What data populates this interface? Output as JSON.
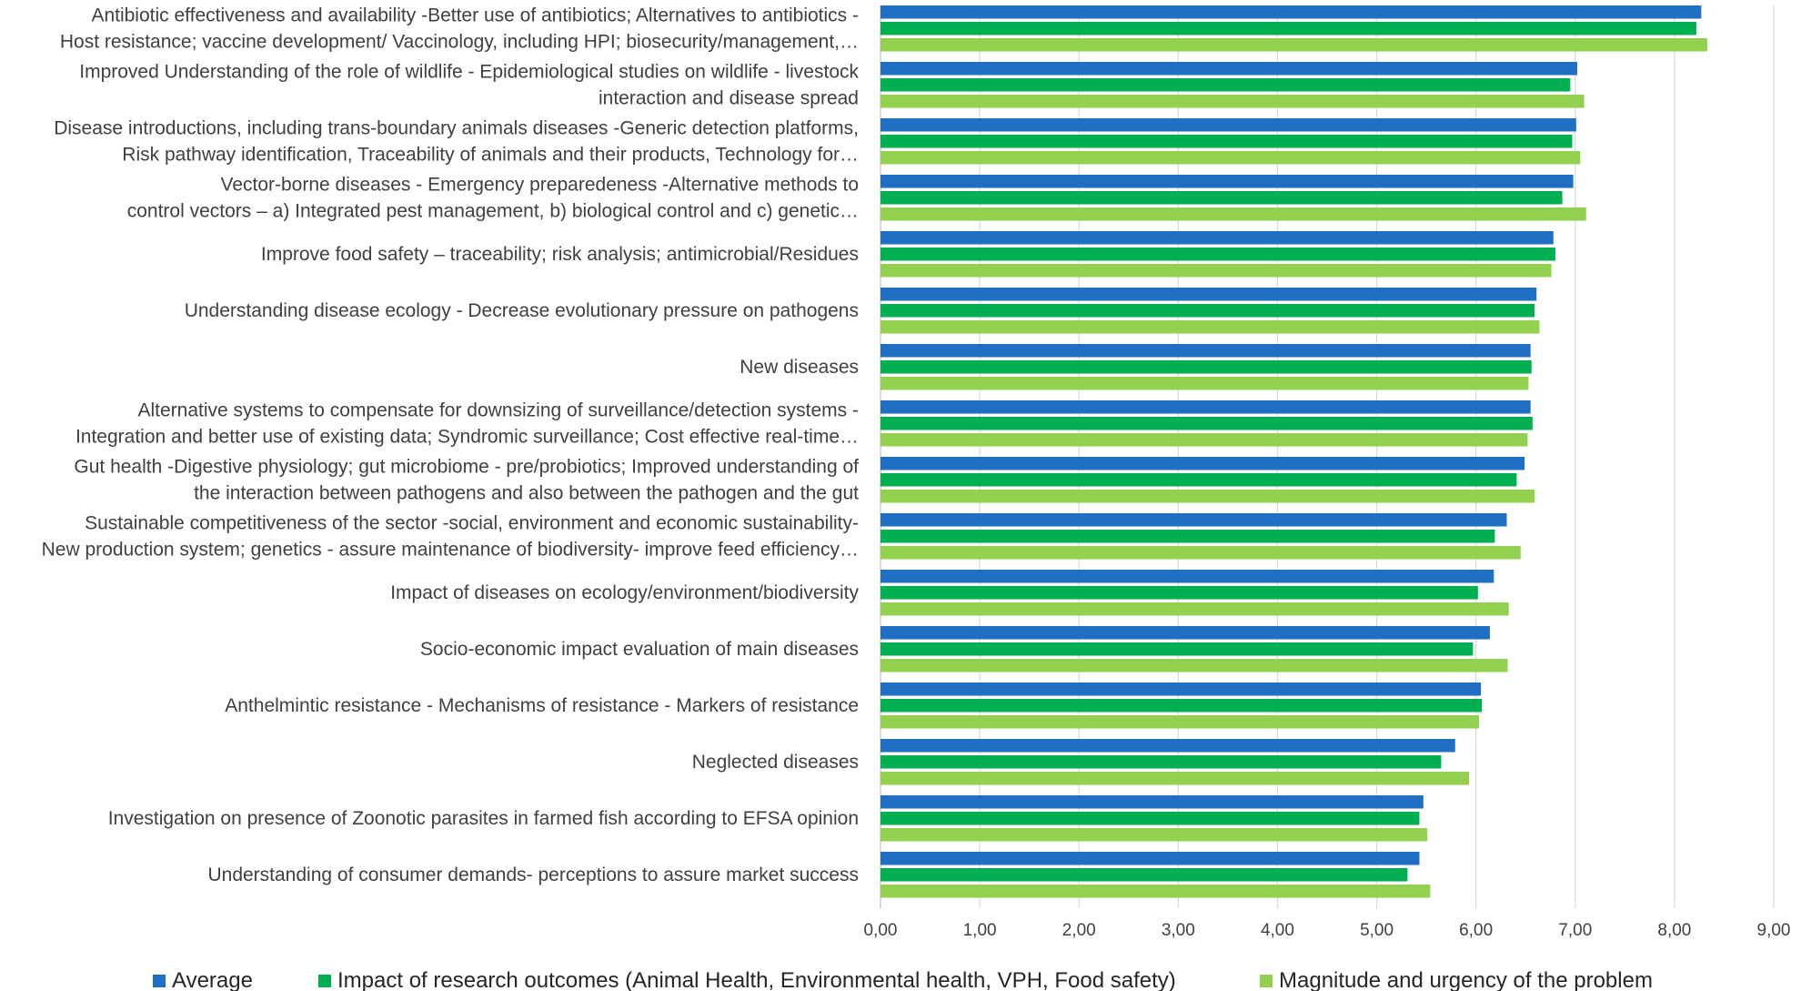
{
  "chart_data": {
    "type": "bar",
    "orientation": "horizontal",
    "categories": [
      [
        "Antibiotic effectiveness and availability -Better use of antibiotics; Alternatives to antibiotics -",
        "Host resistance; vaccine development/ Vaccinology, including HPI; biosecurity/management,…"
      ],
      [
        "Improved Understanding of the role of wildlife - Epidemiological studies on wildlife - livestock",
        "interaction and disease spread"
      ],
      [
        "Disease introductions, including trans-boundary animals diseases -Generic detection platforms,",
        "Risk pathway identification, Traceability of animals and their products, Technology for…"
      ],
      [
        "Vector-borne diseases - Emergency preparedeness -Alternative methods to",
        "control vectors – a) Integrated pest management, b) biological control and c) genetic…"
      ],
      [
        "Improve food safety – traceability; risk analysis; antimicrobial/Residues"
      ],
      [
        "Understanding disease ecology - Decrease evolutionary pressure on pathogens"
      ],
      [
        "New diseases"
      ],
      [
        "Alternative systems to compensate for downsizing of surveillance/detection systems -",
        "Integration and better use of existing data; Syndromic surveillance; Cost effective real-time…"
      ],
      [
        "Gut health -Digestive physiology; gut microbiome - pre/probiotics; Improved understanding of",
        "the interaction between pathogens and also between the pathogen and the gut"
      ],
      [
        "Sustainable competitiveness of the sector -social, environment and economic sustainability-",
        "New production system; genetics - assure maintenance of biodiversity- improve feed efficiency…"
      ],
      [
        "Impact of diseases on ecology/environment/biodiversity"
      ],
      [
        "Socio-economic impact evaluation of main diseases"
      ],
      [
        "Anthelmintic resistance - Mechanisms of resistance - Markers of resistance"
      ],
      [
        "Neglected diseases"
      ],
      [
        "Investigation on presence of Zoonotic parasites in farmed fish according to EFSA opinion"
      ],
      [
        "Understanding of consumer demands- perceptions to assure market success"
      ]
    ],
    "series": [
      {
        "name": "Average",
        "color": "#1f6fc5",
        "values": [
          8.27,
          7.02,
          7.01,
          6.98,
          6.78,
          6.61,
          6.55,
          6.55,
          6.49,
          6.31,
          6.18,
          6.14,
          6.05,
          5.79,
          5.47,
          5.43
        ]
      },
      {
        "name": "Impact of research outcomes (Animal Health, Environmental health, VPH, Food safety)",
        "color": "#00b050",
        "values": [
          8.22,
          6.95,
          6.97,
          6.87,
          6.8,
          6.59,
          6.56,
          6.57,
          6.41,
          6.19,
          6.02,
          5.97,
          6.06,
          5.65,
          5.43,
          5.31
        ]
      },
      {
        "name": "Magnitude and urgency of the problem",
        "color": "#92d050",
        "values": [
          8.33,
          7.09,
          7.05,
          7.11,
          6.76,
          6.64,
          6.53,
          6.52,
          6.59,
          6.45,
          6.33,
          6.32,
          6.03,
          5.93,
          5.51,
          5.54
        ]
      }
    ],
    "xlim": [
      0,
      9
    ],
    "ticks": [
      "0,00",
      "1,00",
      "2,00",
      "3,00",
      "4,00",
      "5,00",
      "6,00",
      "7,00",
      "8,00",
      "9,00"
    ],
    "grid": true,
    "legend_position": "bottom",
    "title": "",
    "xlabel": "",
    "ylabel": ""
  }
}
